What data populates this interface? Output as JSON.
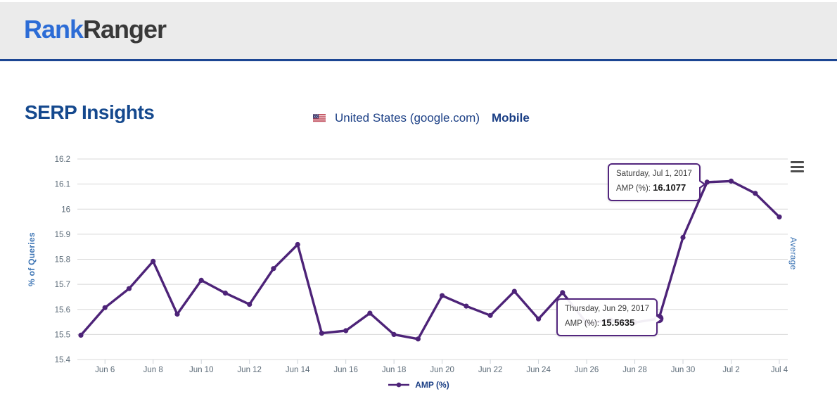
{
  "header": {
    "logo": {
      "part1": "Rank",
      "part2": "Ranger"
    }
  },
  "page": {
    "title": "SERP Insights",
    "location_label": "United States (google.com)",
    "device_label": "Mobile",
    "flag_icon": "us-flag-icon",
    "context_menu_icon": "hamburger-icon"
  },
  "colors": {
    "logo_blue": "#2c6cd6",
    "navy_text": "#1b3f85",
    "title_blue": "#15498e",
    "header_border": "#1c4693",
    "line_purple": "#4d2378",
    "axis_label_blue": "#3c74b4",
    "tick_text_gray": "#5c6b78",
    "tooltip_border": "#53267e",
    "grid_gray": "#d8d8d8"
  },
  "chart_data": {
    "type": "line",
    "title": "",
    "xlabel": "",
    "ylabel": "% of Queries",
    "right_axis_label": "Average",
    "legend_position": "bottom",
    "grid": true,
    "ylim": [
      15.4,
      16.2
    ],
    "ytick_step": 0.1,
    "x": [
      "Jun 5",
      "Jun 6",
      "Jun 7",
      "Jun 8",
      "Jun 9",
      "Jun 10",
      "Jun 11",
      "Jun 12",
      "Jun 13",
      "Jun 14",
      "Jun 15",
      "Jun 16",
      "Jun 17",
      "Jun 18",
      "Jun 19",
      "Jun 20",
      "Jun 21",
      "Jun 22",
      "Jun 23",
      "Jun 24",
      "Jun 25",
      "Jun 26",
      "Jun 27",
      "Jun 28",
      "Jun 29",
      "Jun 30",
      "Jul 1",
      "Jul 2",
      "Jul 3",
      "Jul 4"
    ],
    "xtick_start": 1,
    "xtick_every": 2,
    "series": [
      {
        "name": "AMP (%)",
        "color": "#4d2378",
        "values": [
          15.497,
          15.607,
          15.683,
          15.792,
          15.581,
          15.716,
          15.665,
          15.62,
          15.763,
          15.859,
          15.505,
          15.515,
          15.585,
          15.5,
          15.482,
          15.655,
          15.613,
          15.576,
          15.672,
          15.562,
          15.667,
          15.545,
          15.557,
          15.548,
          15.5635,
          15.887,
          16.1077,
          16.112,
          16.063,
          15.969
        ]
      }
    ],
    "highlight_index": 24,
    "tooltips": [
      {
        "date_label": "Saturday, Jul 1, 2017",
        "series_label": "AMP (%):",
        "value": "16.1077"
      },
      {
        "date_label": "Thursday, Jun 29, 2017",
        "series_label": "AMP (%):",
        "value": "15.5635"
      }
    ]
  }
}
